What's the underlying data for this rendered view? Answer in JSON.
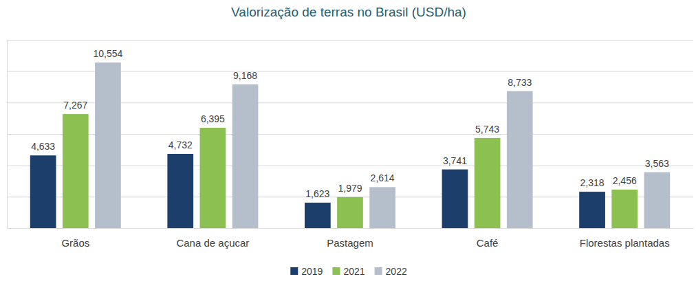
{
  "chart_data": {
    "type": "bar",
    "title": "Valorização de terras no Brasil (USD/ha)",
    "categories": [
      "Grãos",
      "Cana de açucar",
      "Pastagem",
      "Café",
      "Florestas plantadas"
    ],
    "series": [
      {
        "name": "2019",
        "color": "#1b3f6a",
        "values": [
          4633,
          4732,
          1623,
          3741,
          2318
        ],
        "value_labels": [
          "4,633",
          "4,732",
          "1,623",
          "3,741",
          "2,318"
        ]
      },
      {
        "name": "2021",
        "color": "#8cc152",
        "values": [
          7267,
          6395,
          1979,
          5743,
          2456
        ],
        "value_labels": [
          "7,267",
          "6,395",
          "1,979",
          "5,743",
          "2,456"
        ]
      },
      {
        "name": "2022",
        "color": "#b5bfcb",
        "values": [
          10554,
          9168,
          2614,
          8733,
          3563
        ],
        "value_labels": [
          "10,554",
          "9,168",
          "2,614",
          "8,733",
          "3,563"
        ]
      }
    ],
    "ylim": [
      0,
      12000
    ],
    "yticks": [
      0,
      2000,
      4000,
      6000,
      8000,
      10000,
      12000
    ],
    "grid": true,
    "data_labels": true,
    "legend": "bottom",
    "tick_labels": "x"
  }
}
